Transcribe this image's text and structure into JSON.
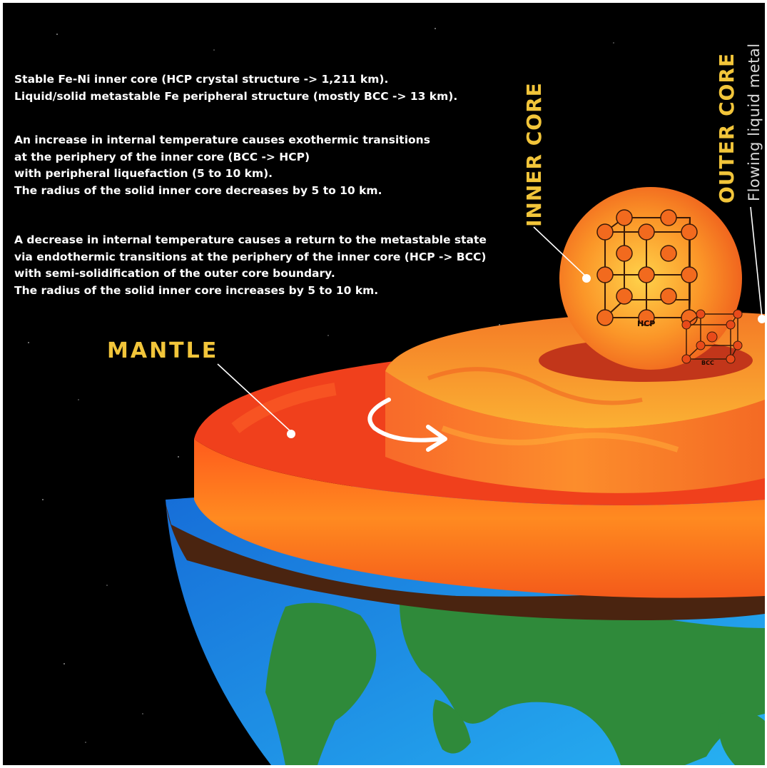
{
  "description": {
    "paragraph1": [
      "Stable Fe-Ni inner core (HCP crystal structure -> 1,211 km).",
      "Liquid/solid metastable Fe peripheral structure (mostly BCC -> 13 km)."
    ],
    "paragraph2": [
      "An increase in internal temperature causes exothermic transitions",
      "at the periphery of the inner core (BCC -> HCP)",
      "with peripheral liquefaction (5 to 10 km).",
      "The radius of the solid inner core decreases by 5 to 10 km."
    ],
    "paragraph3": [
      "A decrease in internal temperature causes a return to the metastable state",
      "via endothermic transitions at the periphery of the inner core (HCP -> BCC)",
      "with semi-solidification of the outer core boundary.",
      "The radius of the solid inner core increases by 5 to 10 km."
    ]
  },
  "labels": {
    "mantle": "MANTLE",
    "inner_core": "INNER CORE",
    "outer_core": "OUTER CORE",
    "flowing": "Flowing liquid metal",
    "hcp": "HCP",
    "bcc": "BCC"
  },
  "colors": {
    "background": "#000000",
    "label_yellow": "#f2c53a",
    "ocean": "#1f8fe0",
    "land": "#2f8a3a",
    "mantle": "#f24a1a",
    "outer_core": "#f89a1c",
    "inner_core": "#f57c1e"
  }
}
